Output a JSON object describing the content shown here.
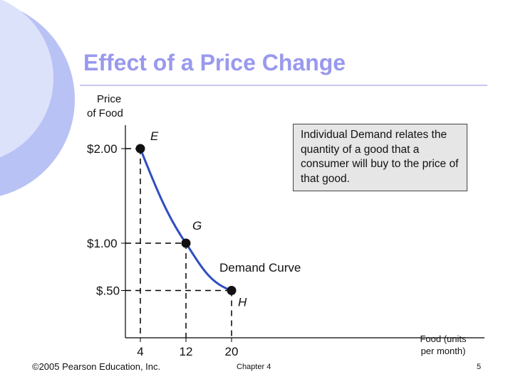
{
  "slide": {
    "title": "Effect of a Price Change",
    "footer_copyright": "©2005 Pearson Education, Inc.",
    "footer_chapter": "Chapter 4",
    "page_number": "5",
    "info_text": "Individual Demand relates the quantity of a good that a consumer will buy to the price of that good."
  },
  "colors": {
    "title": "#9999ee",
    "curve": "#2f4ec0",
    "deco": "#b9c2f5",
    "box": "#e6e6e6"
  },
  "chart_data": {
    "type": "line",
    "title": "Effect of a Price Change",
    "ylabel_lines": [
      "Price",
      "of Food"
    ],
    "xlabel_lines": [
      "Food (units",
      "per month)"
    ],
    "y_ticks": [
      {
        "value": 2.0,
        "label": "$2.00"
      },
      {
        "value": 1.0,
        "label": "$1.00"
      },
      {
        "value": 0.5,
        "label": "$.50"
      }
    ],
    "x_ticks": [
      {
        "value": 4,
        "label": "4"
      },
      {
        "value": 12,
        "label": "12"
      },
      {
        "value": 20,
        "label": "20"
      }
    ],
    "points": [
      {
        "name": "E",
        "x": 4,
        "y": 2.0
      },
      {
        "name": "G",
        "x": 12,
        "y": 1.0
      },
      {
        "name": "H",
        "x": 20,
        "y": 0.5
      }
    ],
    "series": [
      {
        "name": "Demand Curve",
        "x": [
          4,
          12,
          20
        ],
        "y": [
          2.0,
          1.0,
          0.5
        ]
      }
    ],
    "curve_label": "Demand Curve"
  }
}
